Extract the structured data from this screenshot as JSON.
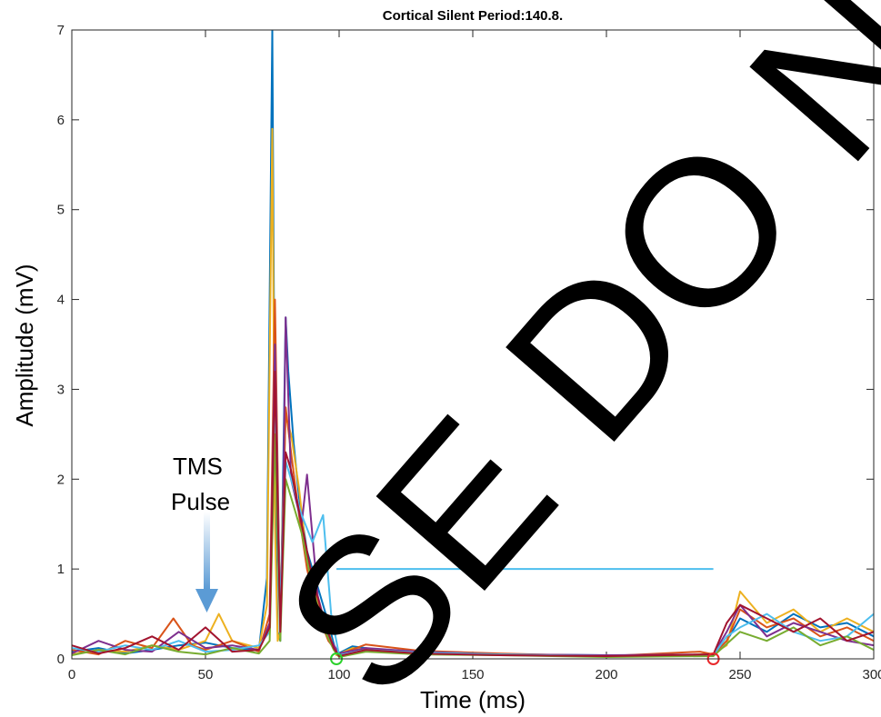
{
  "chart_data": {
    "type": "line",
    "title": "Cortical Silent Period:140.8.",
    "xlabel": "Time (ms)",
    "ylabel": "Amplitude (mV)",
    "xlim": [
      0,
      300
    ],
    "ylim": [
      0,
      7
    ],
    "xticks": [
      0,
      50,
      100,
      150,
      200,
      250,
      300
    ],
    "yticks": [
      0,
      1,
      2,
      3,
      4,
      5,
      6,
      7
    ],
    "grid": false,
    "series": [
      {
        "color": "#0072BD",
        "x": [
          0,
          10,
          20,
          30,
          40,
          50,
          60,
          70,
          73,
          75,
          76,
          77,
          78,
          79,
          80,
          81,
          83,
          85,
          88,
          92,
          96,
          99,
          105,
          115,
          130,
          150,
          200,
          230,
          240,
          245,
          250,
          260,
          270,
          280,
          290,
          300
        ],
        "y": [
          0.08,
          0.12,
          0.06,
          0.1,
          0.15,
          0.18,
          0.12,
          0.1,
          0.9,
          7.0,
          2.0,
          0.3,
          0.2,
          2.0,
          3.8,
          3.2,
          2.4,
          1.8,
          1.2,
          0.8,
          0.4,
          0.05,
          0.14,
          0.1,
          0.07,
          0.05,
          0.04,
          0.03,
          0.05,
          0.2,
          0.45,
          0.3,
          0.5,
          0.35,
          0.4,
          0.25
        ]
      },
      {
        "color": "#EDB120",
        "x": [
          0,
          10,
          20,
          30,
          40,
          50,
          55,
          60,
          70,
          73,
          75,
          76,
          77,
          78,
          79,
          80,
          82,
          85,
          88,
          92,
          96,
          99,
          105,
          120,
          140,
          170,
          200,
          230,
          240,
          245,
          250,
          260,
          270,
          280,
          290,
          300
        ],
        "y": [
          0.05,
          0.1,
          0.08,
          0.15,
          0.1,
          0.2,
          0.5,
          0.2,
          0.12,
          0.6,
          5.9,
          1.5,
          0.2,
          0.3,
          1.8,
          2.7,
          2.5,
          1.9,
          1.1,
          0.6,
          0.3,
          0.04,
          0.12,
          0.08,
          0.05,
          0.04,
          0.03,
          0.04,
          0.06,
          0.15,
          0.75,
          0.4,
          0.55,
          0.3,
          0.45,
          0.3
        ]
      },
      {
        "color": "#D95319",
        "x": [
          0,
          10,
          20,
          30,
          38,
          45,
          50,
          60,
          70,
          74,
          76,
          78,
          79,
          80,
          82,
          85,
          88,
          92,
          96,
          100,
          110,
          130,
          160,
          200,
          235,
          240,
          245,
          250,
          260,
          270,
          280,
          290,
          300
        ],
        "y": [
          0.1,
          0.05,
          0.2,
          0.12,
          0.45,
          0.15,
          0.1,
          0.2,
          0.08,
          0.5,
          4.0,
          0.3,
          1.5,
          2.8,
          2.3,
          1.6,
          1.0,
          0.5,
          0.2,
          0.05,
          0.16,
          0.09,
          0.06,
          0.03,
          0.08,
          0.05,
          0.2,
          0.55,
          0.35,
          0.45,
          0.25,
          0.35,
          0.2
        ]
      },
      {
        "color": "#7E2F8E",
        "x": [
          0,
          10,
          20,
          30,
          40,
          50,
          60,
          70,
          74,
          76,
          78,
          79,
          80,
          82,
          86,
          88,
          92,
          96,
          100,
          110,
          130,
          160,
          200,
          240,
          245,
          250,
          260,
          270,
          280,
          290,
          300
        ],
        "y": [
          0.06,
          0.2,
          0.1,
          0.08,
          0.3,
          0.12,
          0.15,
          0.1,
          0.4,
          3.5,
          0.4,
          1.6,
          3.8,
          2.0,
          1.5,
          2.05,
          0.7,
          0.25,
          0.06,
          0.12,
          0.08,
          0.05,
          0.04,
          0.05,
          0.3,
          0.6,
          0.25,
          0.4,
          0.3,
          0.2,
          0.15
        ]
      },
      {
        "color": "#4DBEEE",
        "x": [
          0,
          10,
          20,
          30,
          40,
          50,
          60,
          70,
          74,
          76,
          78,
          80,
          82,
          86,
          90,
          94,
          97,
          100,
          110,
          130,
          160,
          200,
          240,
          245,
          250,
          260,
          270,
          280,
          290,
          300
        ],
        "y": [
          0.12,
          0.08,
          0.15,
          0.1,
          0.2,
          0.08,
          0.1,
          0.15,
          0.3,
          3.0,
          0.5,
          2.2,
          2.0,
          1.6,
          1.3,
          1.6,
          0.5,
          0.04,
          0.1,
          0.07,
          0.05,
          0.03,
          0.04,
          0.25,
          0.35,
          0.5,
          0.3,
          0.2,
          0.25,
          0.5
        ]
      },
      {
        "color": "#77AC30",
        "x": [
          0,
          10,
          20,
          30,
          40,
          50,
          60,
          70,
          74,
          76,
          78,
          80,
          82,
          86,
          90,
          94,
          98,
          100,
          110,
          130,
          160,
          200,
          240,
          250,
          260,
          270,
          280,
          290,
          300
        ],
        "y": [
          0.04,
          0.1,
          0.05,
          0.15,
          0.08,
          0.05,
          0.12,
          0.06,
          0.2,
          2.5,
          0.2,
          2.0,
          1.8,
          1.4,
          0.8,
          0.35,
          0.1,
          0.02,
          0.08,
          0.05,
          0.04,
          0.02,
          0.03,
          0.3,
          0.2,
          0.35,
          0.15,
          0.25,
          0.1
        ]
      },
      {
        "color": "#A2142F",
        "x": [
          0,
          10,
          20,
          30,
          40,
          50,
          60,
          70,
          74,
          76,
          78,
          80,
          82,
          86,
          90,
          94,
          98,
          100,
          110,
          130,
          160,
          200,
          240,
          245,
          250,
          260,
          270,
          280,
          290,
          300
        ],
        "y": [
          0.15,
          0.06,
          0.12,
          0.25,
          0.1,
          0.35,
          0.08,
          0.1,
          0.35,
          3.2,
          0.3,
          2.3,
          2.1,
          1.5,
          0.9,
          0.45,
          0.12,
          0.03,
          0.1,
          0.06,
          0.04,
          0.03,
          0.05,
          0.4,
          0.6,
          0.45,
          0.3,
          0.45,
          0.2,
          0.3
        ]
      }
    ],
    "threshold_line": {
      "color": "#4DBEEE",
      "x": [
        99,
        240
      ],
      "y": [
        1,
        1
      ]
    },
    "markers": [
      {
        "x": 99,
        "y": 0,
        "color": "#2CD12C"
      },
      {
        "x": 240,
        "y": 0,
        "color": "#E8282B"
      }
    ],
    "annotation": {
      "line1": "TMS",
      "line2": "Pulse",
      "x": 50,
      "y": 0.5,
      "color": "#5B9BD5"
    }
  },
  "watermark": "SE DO NO"
}
